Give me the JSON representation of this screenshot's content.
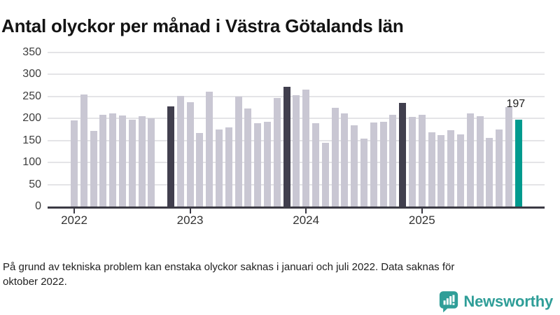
{
  "title": "Antal olyckor per månad i Västra Götalands län",
  "footnote": {
    "lines": [
      "På grund av tekniska problem kan enstaka olyckor saknas i januari och juli 2022. Data saknas för",
      "oktober 2022."
    ]
  },
  "logo": {
    "text": "Newsworthy",
    "icon": "bar-chart-speech-bubble-icon",
    "color": "#2f9e98"
  },
  "chart_data": {
    "type": "bar",
    "title": "Antal olyckor per månad i Västra Götalands län",
    "xlabel": "",
    "ylabel": "",
    "ylim": [
      0,
      350
    ],
    "y_ticks": [
      0,
      50,
      100,
      150,
      200,
      250,
      300,
      350
    ],
    "x_tick_labels": [
      "2022",
      "2023",
      "2024",
      "2025"
    ],
    "grid": "horizontal",
    "colors": {
      "default": "#c9c7d3",
      "highlight": "#413f4e",
      "latest": "#009a8e"
    },
    "missing_months": [
      "2022-10"
    ],
    "latest": {
      "month": "2025-11",
      "value": 197,
      "label": "197"
    },
    "bars": [
      {
        "month": "2022-01",
        "value": 196,
        "style": "default"
      },
      {
        "month": "2022-02",
        "value": 254,
        "style": "default"
      },
      {
        "month": "2022-03",
        "value": 172,
        "style": "default"
      },
      {
        "month": "2022-04",
        "value": 208,
        "style": "default"
      },
      {
        "month": "2022-05",
        "value": 212,
        "style": "default"
      },
      {
        "month": "2022-06",
        "value": 207,
        "style": "default"
      },
      {
        "month": "2022-07",
        "value": 198,
        "style": "default"
      },
      {
        "month": "2022-08",
        "value": 205,
        "style": "default"
      },
      {
        "month": "2022-09",
        "value": 201,
        "style": "default"
      },
      {
        "month": "2022-10",
        "value": null,
        "style": "missing"
      },
      {
        "month": "2022-11",
        "value": 227,
        "style": "highlight"
      },
      {
        "month": "2022-12",
        "value": 252,
        "style": "default"
      },
      {
        "month": "2023-01",
        "value": 237,
        "style": "default"
      },
      {
        "month": "2023-02",
        "value": 167,
        "style": "default"
      },
      {
        "month": "2023-03",
        "value": 261,
        "style": "default"
      },
      {
        "month": "2023-04",
        "value": 175,
        "style": "default"
      },
      {
        "month": "2023-05",
        "value": 180,
        "style": "default"
      },
      {
        "month": "2023-06",
        "value": 249,
        "style": "default"
      },
      {
        "month": "2023-07",
        "value": 223,
        "style": "default"
      },
      {
        "month": "2023-08",
        "value": 190,
        "style": "default"
      },
      {
        "month": "2023-09",
        "value": 193,
        "style": "default"
      },
      {
        "month": "2023-10",
        "value": 246,
        "style": "default"
      },
      {
        "month": "2023-11",
        "value": 272,
        "style": "highlight"
      },
      {
        "month": "2023-12",
        "value": 253,
        "style": "default"
      },
      {
        "month": "2024-01",
        "value": 266,
        "style": "default"
      },
      {
        "month": "2024-02",
        "value": 190,
        "style": "default"
      },
      {
        "month": "2024-03",
        "value": 145,
        "style": "default"
      },
      {
        "month": "2024-04",
        "value": 225,
        "style": "default"
      },
      {
        "month": "2024-05",
        "value": 212,
        "style": "default"
      },
      {
        "month": "2024-06",
        "value": 184,
        "style": "default"
      },
      {
        "month": "2024-07",
        "value": 155,
        "style": "default"
      },
      {
        "month": "2024-08",
        "value": 191,
        "style": "default"
      },
      {
        "month": "2024-09",
        "value": 193,
        "style": "default"
      },
      {
        "month": "2024-10",
        "value": 208,
        "style": "default"
      },
      {
        "month": "2024-11",
        "value": 236,
        "style": "highlight"
      },
      {
        "month": "2024-12",
        "value": 204,
        "style": "default"
      },
      {
        "month": "2025-01",
        "value": 208,
        "style": "default"
      },
      {
        "month": "2025-02",
        "value": 169,
        "style": "default"
      },
      {
        "month": "2025-03",
        "value": 162,
        "style": "default"
      },
      {
        "month": "2025-04",
        "value": 173,
        "style": "default"
      },
      {
        "month": "2025-05",
        "value": 164,
        "style": "default"
      },
      {
        "month": "2025-06",
        "value": 212,
        "style": "default"
      },
      {
        "month": "2025-07",
        "value": 205,
        "style": "default"
      },
      {
        "month": "2025-08",
        "value": 156,
        "style": "default"
      },
      {
        "month": "2025-09",
        "value": 175,
        "style": "default"
      },
      {
        "month": "2025-10",
        "value": 226,
        "style": "default"
      },
      {
        "month": "2025-11",
        "value": 197,
        "style": "latest"
      }
    ]
  }
}
